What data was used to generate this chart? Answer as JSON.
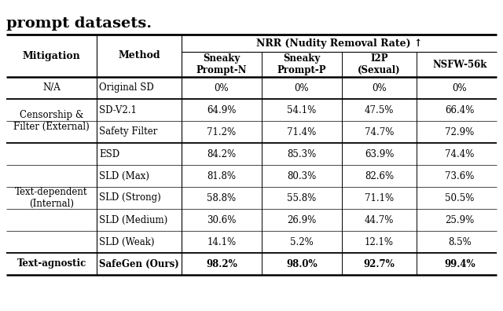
{
  "title": "prompt datasets.",
  "nrr_label": "NRR (Nudity Removal Rate) ↑",
  "col_headers": [
    "Mitigation",
    "Method",
    "Sneaky\nPrompt-N",
    "Sneaky\nPrompt-P",
    "I2P\n(Sexual)",
    "NSFW-56k"
  ],
  "rows": [
    [
      "N/A",
      "Original SD",
      "0%",
      "0%",
      "0%",
      "0%"
    ],
    [
      "Censorship &\nFilter (External)",
      "SD-V2.1",
      "64.9%",
      "54.1%",
      "47.5%",
      "66.4%"
    ],
    [
      "",
      "Safety Filter",
      "71.2%",
      "71.4%",
      "74.7%",
      "72.9%"
    ],
    [
      "Text-dependent\n(Internal)",
      "ESD",
      "84.2%",
      "85.3%",
      "63.9%",
      "74.4%"
    ],
    [
      "",
      "SLD (Max)",
      "81.8%",
      "80.3%",
      "82.6%",
      "73.6%"
    ],
    [
      "",
      "SLD (Strong)",
      "58.8%",
      "55.8%",
      "71.1%",
      "50.5%"
    ],
    [
      "",
      "SLD (Medium)",
      "30.6%",
      "26.9%",
      "44.7%",
      "25.9%"
    ],
    [
      "",
      "SLD (Weak)",
      "14.1%",
      "5.2%",
      "12.1%",
      "8.5%"
    ],
    [
      "Text-agnostic",
      "SafeGen (Ours)",
      "98.2%",
      "98.0%",
      "92.7%",
      "99.4%"
    ]
  ],
  "mitigation_groups": [
    [
      0,
      0,
      "N/A"
    ],
    [
      1,
      2,
      "Censorship &\nFilter (External)"
    ],
    [
      3,
      7,
      "Text-dependent\n(Internal)"
    ],
    [
      8,
      8,
      "Text-agnostic"
    ]
  ],
  "group_separators_after": [
    0,
    2,
    7
  ],
  "bg_color": "#ffffff",
  "figsize": [
    6.4,
    3.96
  ],
  "dpi": 100
}
